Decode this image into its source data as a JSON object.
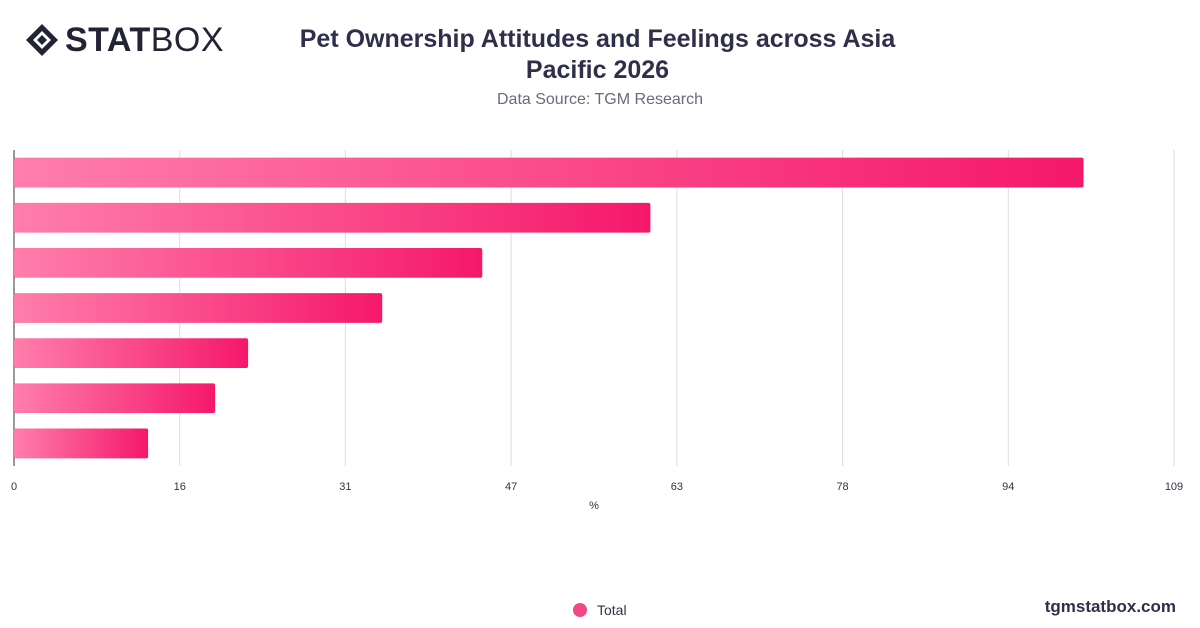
{
  "brand": {
    "logo_bold": "STAT",
    "logo_light": "BOX",
    "url": "tgmstatbox.com"
  },
  "header": {
    "title_line1": "Pet Ownership Attitudes and Feelings across Asia",
    "title_line2": "Pacific 2026",
    "subtitle": "Data Source: TGM Research"
  },
  "colors": {
    "bar_start": "#ff7eab",
    "bar_end": "#f5186a",
    "grid": "#dddddd",
    "axis_text": "#333344",
    "legend_dot": "#f04a86"
  },
  "legend": {
    "items": [
      {
        "label": "Total",
        "icon": "circle-marker"
      }
    ]
  },
  "chart_data": {
    "type": "bar",
    "orientation": "horizontal",
    "categories": [
      "",
      "",
      "",
      "",
      "",
      "",
      ""
    ],
    "series": [
      {
        "name": "Total",
        "values": [
          100.5,
          59.8,
          44.0,
          34.6,
          22.0,
          18.9,
          12.6
        ]
      }
    ],
    "xlabel": "%",
    "ylabel": "",
    "xlim": [
      0,
      109
    ],
    "xticks": [
      "0",
      "16",
      "31",
      "47",
      "63",
      "78",
      "94",
      "109"
    ],
    "grid": true,
    "legend_position": "bottom"
  }
}
